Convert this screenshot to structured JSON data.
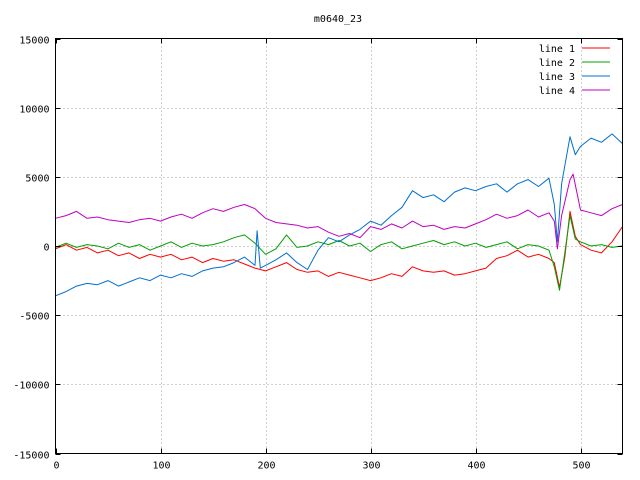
{
  "chart_data": {
    "type": "line",
    "title": "m0640_23",
    "xlabel": "",
    "ylabel": "",
    "xlim": [
      0,
      540
    ],
    "ylim": [
      -15000,
      15000
    ],
    "x_ticks": [
      0,
      100,
      200,
      300,
      400,
      500
    ],
    "y_ticks": [
      -15000,
      -10000,
      -5000,
      0,
      5000,
      10000,
      15000
    ],
    "grid": true,
    "legend_position": "top-right",
    "series": [
      {
        "name": "line 1",
        "color": "#ff0000",
        "x": [
          0,
          10,
          20,
          30,
          40,
          50,
          60,
          70,
          80,
          90,
          100,
          110,
          120,
          130,
          140,
          150,
          160,
          170,
          180,
          190,
          200,
          210,
          220,
          230,
          240,
          250,
          260,
          270,
          280,
          290,
          300,
          310,
          320,
          330,
          340,
          350,
          360,
          370,
          380,
          390,
          400,
          410,
          420,
          430,
          440,
          450,
          460,
          470,
          475,
          480,
          485,
          490,
          495,
          500,
          510,
          520,
          530,
          540
        ],
        "y": [
          -200,
          100,
          -300,
          -100,
          -500,
          -300,
          -700,
          -500,
          -900,
          -600,
          -800,
          -600,
          -1000,
          -800,
          -1200,
          -900,
          -1100,
          -1000,
          -1300,
          -1600,
          -1800,
          -1500,
          -1200,
          -1700,
          -1900,
          -1800,
          -2200,
          -1900,
          -2100,
          -2300,
          -2500,
          -2300,
          -2000,
          -2200,
          -1500,
          -1800,
          -1900,
          -1800,
          -2100,
          -2000,
          -1800,
          -1600,
          -900,
          -700,
          -300,
          -800,
          -600,
          -900,
          -1200,
          -3000,
          -800,
          2500,
          700,
          100,
          -300,
          -500,
          300,
          1400
        ]
      },
      {
        "name": "line 2",
        "color": "#00a000",
        "x": [
          0,
          10,
          20,
          30,
          40,
          50,
          60,
          70,
          80,
          90,
          100,
          110,
          120,
          130,
          140,
          150,
          160,
          170,
          180,
          190,
          200,
          210,
          220,
          230,
          240,
          250,
          260,
          270,
          280,
          290,
          300,
          310,
          320,
          330,
          340,
          350,
          360,
          370,
          380,
          390,
          400,
          410,
          420,
          430,
          440,
          450,
          460,
          470,
          475,
          480,
          485,
          490,
          495,
          500,
          510,
          520,
          530,
          540
        ],
        "y": [
          -100,
          200,
          -100,
          100,
          0,
          -200,
          200,
          -100,
          100,
          -300,
          0,
          300,
          -100,
          200,
          0,
          100,
          300,
          600,
          800,
          200,
          -600,
          -200,
          800,
          -100,
          0,
          300,
          100,
          400,
          0,
          200,
          -400,
          100,
          300,
          -200,
          0,
          200,
          400,
          100,
          300,
          0,
          200,
          -100,
          100,
          300,
          -200,
          100,
          0,
          -300,
          -1500,
          -3200,
          -500,
          2200,
          500,
          300,
          0,
          100,
          -100,
          0
        ]
      },
      {
        "name": "line 3",
        "color": "#0070d0",
        "x": [
          0,
          10,
          20,
          30,
          40,
          50,
          60,
          70,
          80,
          90,
          100,
          110,
          120,
          130,
          140,
          150,
          160,
          170,
          180,
          190,
          192,
          195,
          200,
          210,
          220,
          230,
          240,
          250,
          260,
          270,
          280,
          290,
          300,
          310,
          320,
          330,
          340,
          350,
          360,
          370,
          380,
          390,
          400,
          410,
          420,
          430,
          440,
          450,
          460,
          470,
          475,
          478,
          482,
          490,
          495,
          500,
          510,
          520,
          530,
          540
        ],
        "y": [
          -3600,
          -3300,
          -2900,
          -2700,
          -2800,
          -2500,
          -2900,
          -2600,
          -2300,
          -2500,
          -2100,
          -2300,
          -2000,
          -2200,
          -1800,
          -1600,
          -1500,
          -1200,
          -800,
          -1400,
          1100,
          -1600,
          -1400,
          -1000,
          -500,
          -1200,
          -1700,
          -300,
          600,
          300,
          800,
          1200,
          1800,
          1500,
          2200,
          2800,
          4000,
          3500,
          3700,
          3200,
          3900,
          4200,
          4000,
          4300,
          4500,
          3900,
          4500,
          4800,
          4300,
          4900,
          3000,
          300,
          4500,
          7900,
          6600,
          7200,
          7800,
          7500,
          8100,
          7400
        ]
      },
      {
        "name": "line 4",
        "color": "#c000c0",
        "x": [
          0,
          10,
          20,
          30,
          40,
          50,
          60,
          70,
          80,
          90,
          100,
          110,
          120,
          130,
          140,
          150,
          160,
          170,
          180,
          190,
          200,
          210,
          220,
          230,
          240,
          250,
          260,
          270,
          280,
          290,
          300,
          310,
          320,
          330,
          340,
          350,
          360,
          370,
          380,
          390,
          400,
          410,
          420,
          430,
          440,
          450,
          460,
          470,
          475,
          478,
          482,
          490,
          493,
          500,
          510,
          520,
          530,
          540
        ],
        "y": [
          2000,
          2200,
          2500,
          2000,
          2100,
          1900,
          1800,
          1700,
          1900,
          2000,
          1800,
          2100,
          2300,
          2000,
          2400,
          2700,
          2500,
          2800,
          3000,
          2700,
          2000,
          1700,
          1600,
          1500,
          1300,
          1400,
          1000,
          700,
          900,
          600,
          1400,
          1200,
          1600,
          1300,
          1800,
          1400,
          1500,
          1200,
          1400,
          1300,
          1600,
          1900,
          2300,
          2000,
          2200,
          2600,
          2100,
          2400,
          1800,
          -200,
          2200,
          4800,
          5200,
          2600,
          2400,
          2200,
          2700,
          3000
        ]
      }
    ]
  }
}
